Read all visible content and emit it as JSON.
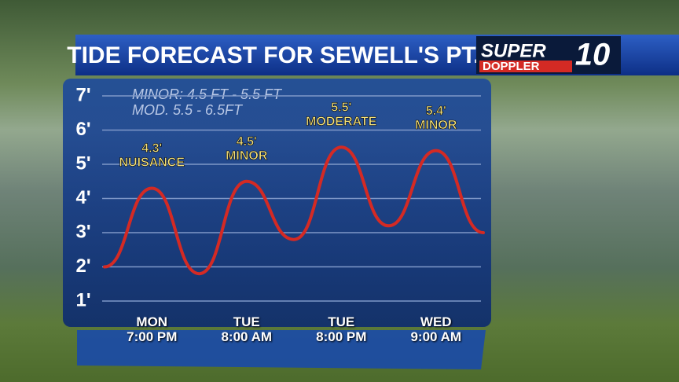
{
  "title": "TIDE FORECAST FOR SEWELL'S PT.",
  "logo": {
    "top": "SUPER",
    "bottom": "DOPPLER",
    "number": "10"
  },
  "chart_data": {
    "type": "line",
    "annotations": [
      "MINOR: 4.5 FT - 5.5 FT",
      "MOD. 5.5 - 6.5FT"
    ],
    "categories": [
      null,
      "MON\n7:00 PM",
      null,
      "TUE\n8:00 AM",
      null,
      "TUE\n8:00 PM",
      null,
      "WED\n9:00 AM",
      null
    ],
    "series": [
      {
        "color": "#d42a24",
        "values": [
          2.0,
          4.3,
          1.8,
          4.5,
          2.8,
          5.5,
          3.2,
          5.4,
          3.0
        ],
        "value_labels": [
          null,
          "4.3'",
          null,
          "4.5'",
          null,
          "5.5'",
          null,
          "5.4'",
          null
        ],
        "status_labels": [
          null,
          "NUISANCE",
          null,
          "MINOR",
          null,
          "MODERATE",
          null,
          "MINOR",
          null
        ]
      }
    ],
    "ylim": [
      1,
      7
    ],
    "yticks": [
      {
        "value": 1,
        "label": "1'"
      },
      {
        "value": 2,
        "label": "2'"
      },
      {
        "value": 3,
        "label": "3'"
      },
      {
        "value": 4,
        "label": "4'"
      },
      {
        "value": 5,
        "label": "5'"
      },
      {
        "value": 6,
        "label": "6'"
      },
      {
        "value": 7,
        "label": "7'"
      }
    ],
    "grid": true
  }
}
